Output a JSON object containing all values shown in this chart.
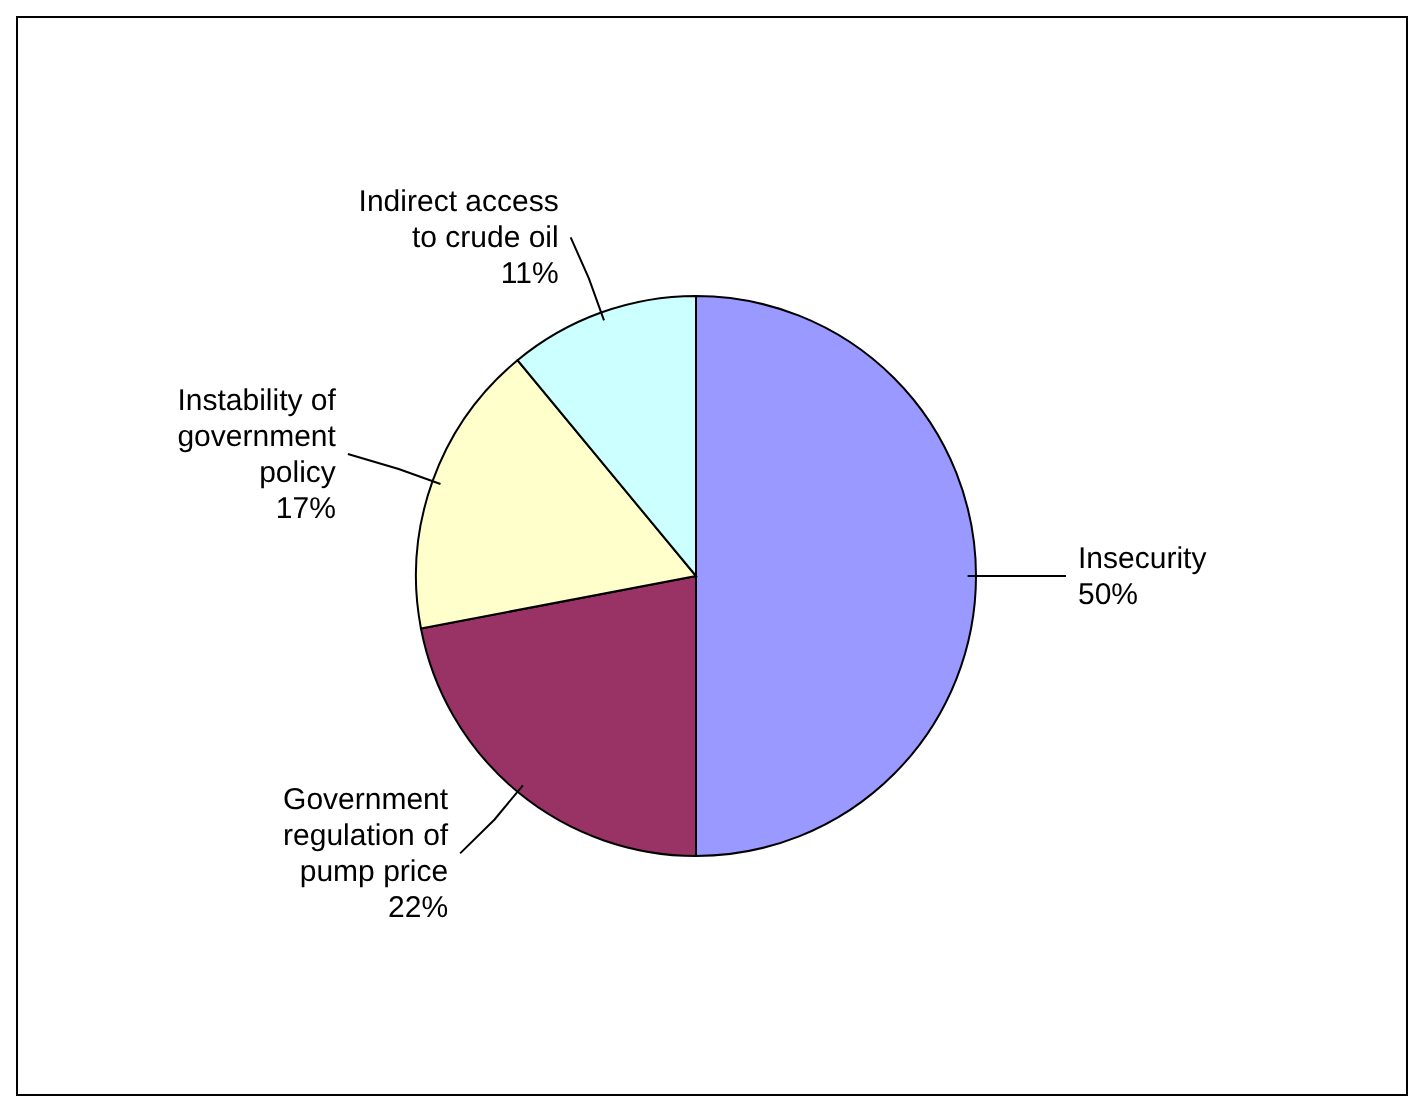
{
  "chart_data": {
    "type": "pie",
    "categories": [
      "Insecurity",
      "Government regulation of pump price",
      "Instability of government policy",
      "Indirect access to crude oil"
    ],
    "values": [
      50,
      22,
      17,
      11
    ],
    "value_labels": [
      "50%",
      "22%",
      "17%",
      "11%"
    ],
    "colors": [
      "#9999ff",
      "#993366",
      "#ffffcc",
      "#ccffff"
    ],
    "legend": false
  }
}
